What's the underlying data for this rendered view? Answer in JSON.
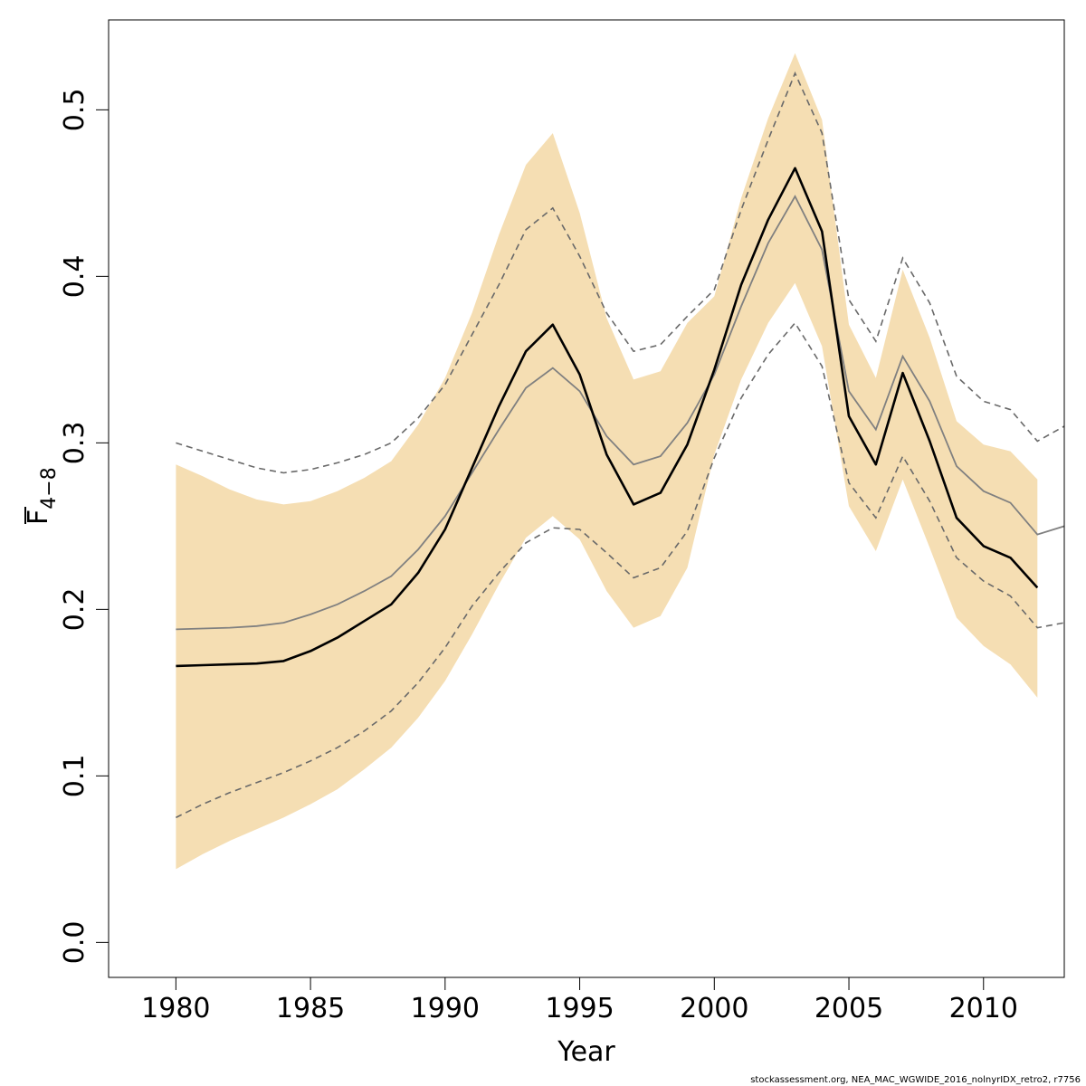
{
  "chart_data": {
    "type": "line",
    "title": "",
    "xlabel": "Year",
    "ylabel": "F",
    "ylabel_subscript": "4−8",
    "xlim": [
      1977.5,
      1982.5
    ],
    "ylim": [
      0.0,
      0.5
    ],
    "x_ticks": [
      "1980",
      "1985",
      "1990",
      "1995",
      "2000",
      "2005",
      "2010"
    ],
    "y_ticks": [
      "0.0",
      "0.1",
      "0.2",
      "0.3",
      "0.4",
      "0.5"
    ],
    "grid": false,
    "legend": "none",
    "x": [
      1980,
      1981,
      1982,
      1983,
      1984,
      1985,
      1986,
      1987,
      1988,
      1989,
      1990,
      1991,
      1992,
      1993,
      1994,
      1995,
      1996,
      1997,
      1998,
      1999,
      2000,
      2001,
      2002,
      2003,
      2004,
      2005,
      2006,
      2007,
      2008,
      2009,
      2010,
      2011,
      2012
    ],
    "series": [
      {
        "values": [
          0.166,
          0.1665,
          0.167,
          0.1675,
          0.169,
          0.175,
          0.183,
          0.193,
          0.203,
          0.222,
          0.248,
          0.285,
          0.322,
          0.355,
          0.371,
          0.341,
          0.293,
          0.263,
          0.27,
          0.299,
          0.344,
          0.395,
          0.434,
          0.465,
          0.427,
          0.316,
          0.287,
          0.342,
          0.301,
          0.255,
          0.238,
          0.231,
          0.213
        ],
        "color": "#000000",
        "style": "solid-thick"
      },
      {
        "values": [
          0.044,
          0.053,
          0.061,
          0.068,
          0.075,
          0.083,
          0.092,
          0.104,
          0.117,
          0.135,
          0.157,
          0.185,
          0.215,
          0.243,
          0.256,
          0.242,
          0.211,
          0.189,
          0.196,
          0.225,
          0.293,
          0.338,
          0.372,
          0.396,
          0.358,
          0.262,
          0.235,
          0.278,
          0.237,
          0.195,
          0.178,
          0.167,
          0.147
        ],
        "color": "#f5deb3",
        "style": "band-lower"
      },
      {
        "values": [
          0.287,
          0.28,
          0.272,
          0.266,
          0.263,
          0.265,
          0.271,
          0.279,
          0.289,
          0.311,
          0.339,
          0.378,
          0.425,
          0.467,
          0.486,
          0.438,
          0.375,
          0.338,
          0.343,
          0.372,
          0.388,
          0.447,
          0.495,
          0.534,
          0.494,
          0.371,
          0.339,
          0.404,
          0.363,
          0.313,
          0.299,
          0.295,
          0.278
        ],
        "color": "#f5deb3",
        "style": "band-upper"
      }
    ],
    "x_full": [
      1980,
      1981,
      1982,
      1983,
      1984,
      1985,
      1986,
      1987,
      1988,
      1989,
      1990,
      1991,
      1992,
      1993,
      1994,
      1995,
      1996,
      1997,
      1998,
      1999,
      2000,
      2001,
      2002,
      2003,
      2004,
      2005,
      2006,
      2007,
      2008,
      2009,
      2010,
      2011,
      2012,
      2013
    ],
    "series_full": [
      {
        "values": [
          0.188,
          0.1885,
          0.189,
          0.19,
          0.192,
          0.197,
          0.203,
          0.211,
          0.22,
          0.236,
          0.256,
          0.282,
          0.308,
          0.333,
          0.345,
          0.331,
          0.304,
          0.287,
          0.292,
          0.312,
          0.341,
          0.382,
          0.42,
          0.448,
          0.416,
          0.331,
          0.308,
          0.352,
          0.325,
          0.286,
          0.271,
          0.264,
          0.245,
          0.25
        ],
        "color": "#808080",
        "style": "solid-thin"
      },
      {
        "values": [
          0.3,
          0.295,
          0.29,
          0.285,
          0.282,
          0.284,
          0.288,
          0.293,
          0.3,
          0.315,
          0.335,
          0.365,
          0.395,
          0.428,
          0.441,
          0.412,
          0.378,
          0.355,
          0.359,
          0.376,
          0.392,
          0.44,
          0.482,
          0.522,
          0.486,
          0.386,
          0.361,
          0.411,
          0.384,
          0.34,
          0.325,
          0.32,
          0.301,
          0.31
        ],
        "color": "#696969",
        "style": "dashed"
      },
      {
        "values": [
          0.075,
          0.083,
          0.09,
          0.096,
          0.102,
          0.109,
          0.117,
          0.127,
          0.139,
          0.156,
          0.177,
          0.202,
          0.222,
          0.24,
          0.249,
          0.248,
          0.234,
          0.219,
          0.225,
          0.247,
          0.291,
          0.327,
          0.353,
          0.372,
          0.346,
          0.276,
          0.255,
          0.292,
          0.265,
          0.231,
          0.217,
          0.208,
          0.189,
          0.192
        ],
        "color": "#696969",
        "style": "dashed"
      }
    ]
  },
  "footer": "stockassessment.org, NEA_MAC_WGWIDE_2016_nolnyrIDX_retro2, r7756"
}
